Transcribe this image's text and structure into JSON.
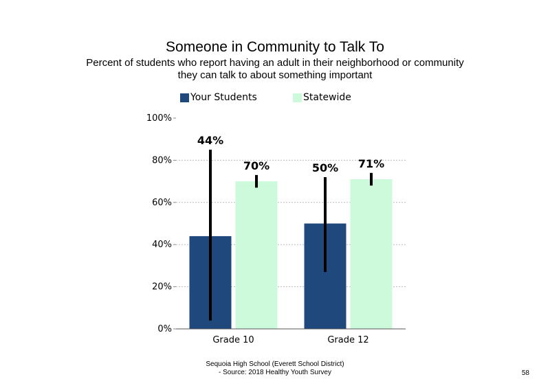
{
  "chart_data": {
    "type": "bar",
    "title": "Someone in Community to Talk To",
    "subtitle_lines": [
      "Percent of students who report having an adult in their neighborhood or community",
      "they can talk to about something important"
    ],
    "categories": [
      "Grade 10",
      "Grade 12"
    ],
    "series": [
      {
        "name": "Your Students",
        "color": "#1f497d",
        "values": [
          44,
          50
        ],
        "labels": [
          "44%",
          "50%"
        ],
        "error_low": [
          4,
          27
        ],
        "error_high": [
          85,
          72
        ]
      },
      {
        "name": "Statewide",
        "color": "#ccfadb",
        "values": [
          70,
          71
        ],
        "labels": [
          "70%",
          "71%"
        ],
        "error_low": [
          67,
          68
        ],
        "error_high": [
          73,
          74
        ]
      }
    ],
    "ylim": [
      0,
      100
    ],
    "yticks": [
      "0%",
      "20%",
      "40%",
      "60%",
      "80%",
      "100%"
    ],
    "grid": true,
    "legend_position": "top"
  },
  "footer": {
    "line1": "Sequoia High School (Everett School District)",
    "line2": "- Source: 2018 Healthy Youth Survey"
  },
  "page_number": "58"
}
